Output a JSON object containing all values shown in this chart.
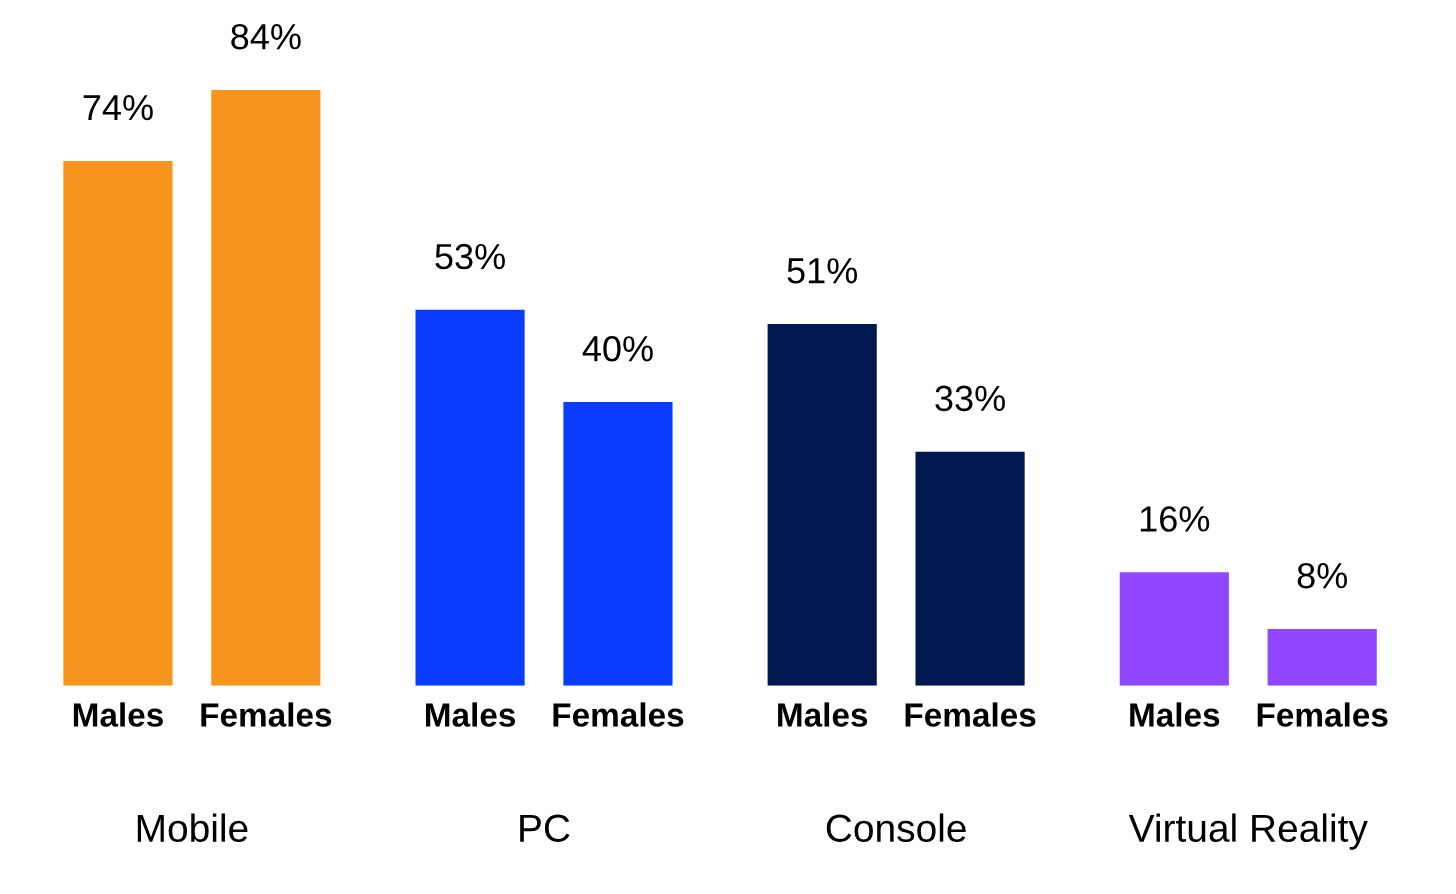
{
  "chart_data": {
    "type": "bar",
    "categories": [
      "Mobile",
      "PC",
      "Console",
      "Virtual Reality"
    ],
    "series": [
      {
        "name": "Males",
        "values": [
          74,
          53,
          51,
          16
        ],
        "colors": [
          "#f7941d",
          "#0a3cff",
          "#00174f",
          "#9146ff"
        ],
        "value_labels": [
          "74%",
          "53%",
          "51%",
          "16%"
        ]
      },
      {
        "name": "Females",
        "values": [
          84,
          40,
          33,
          8
        ],
        "colors": [
          "#f7941d",
          "#0a3cff",
          "#00174f",
          "#9146ff"
        ],
        "value_labels": [
          "84%",
          "40%",
          "33%",
          "8%"
        ]
      }
    ],
    "grid": false,
    "legend": false
  }
}
